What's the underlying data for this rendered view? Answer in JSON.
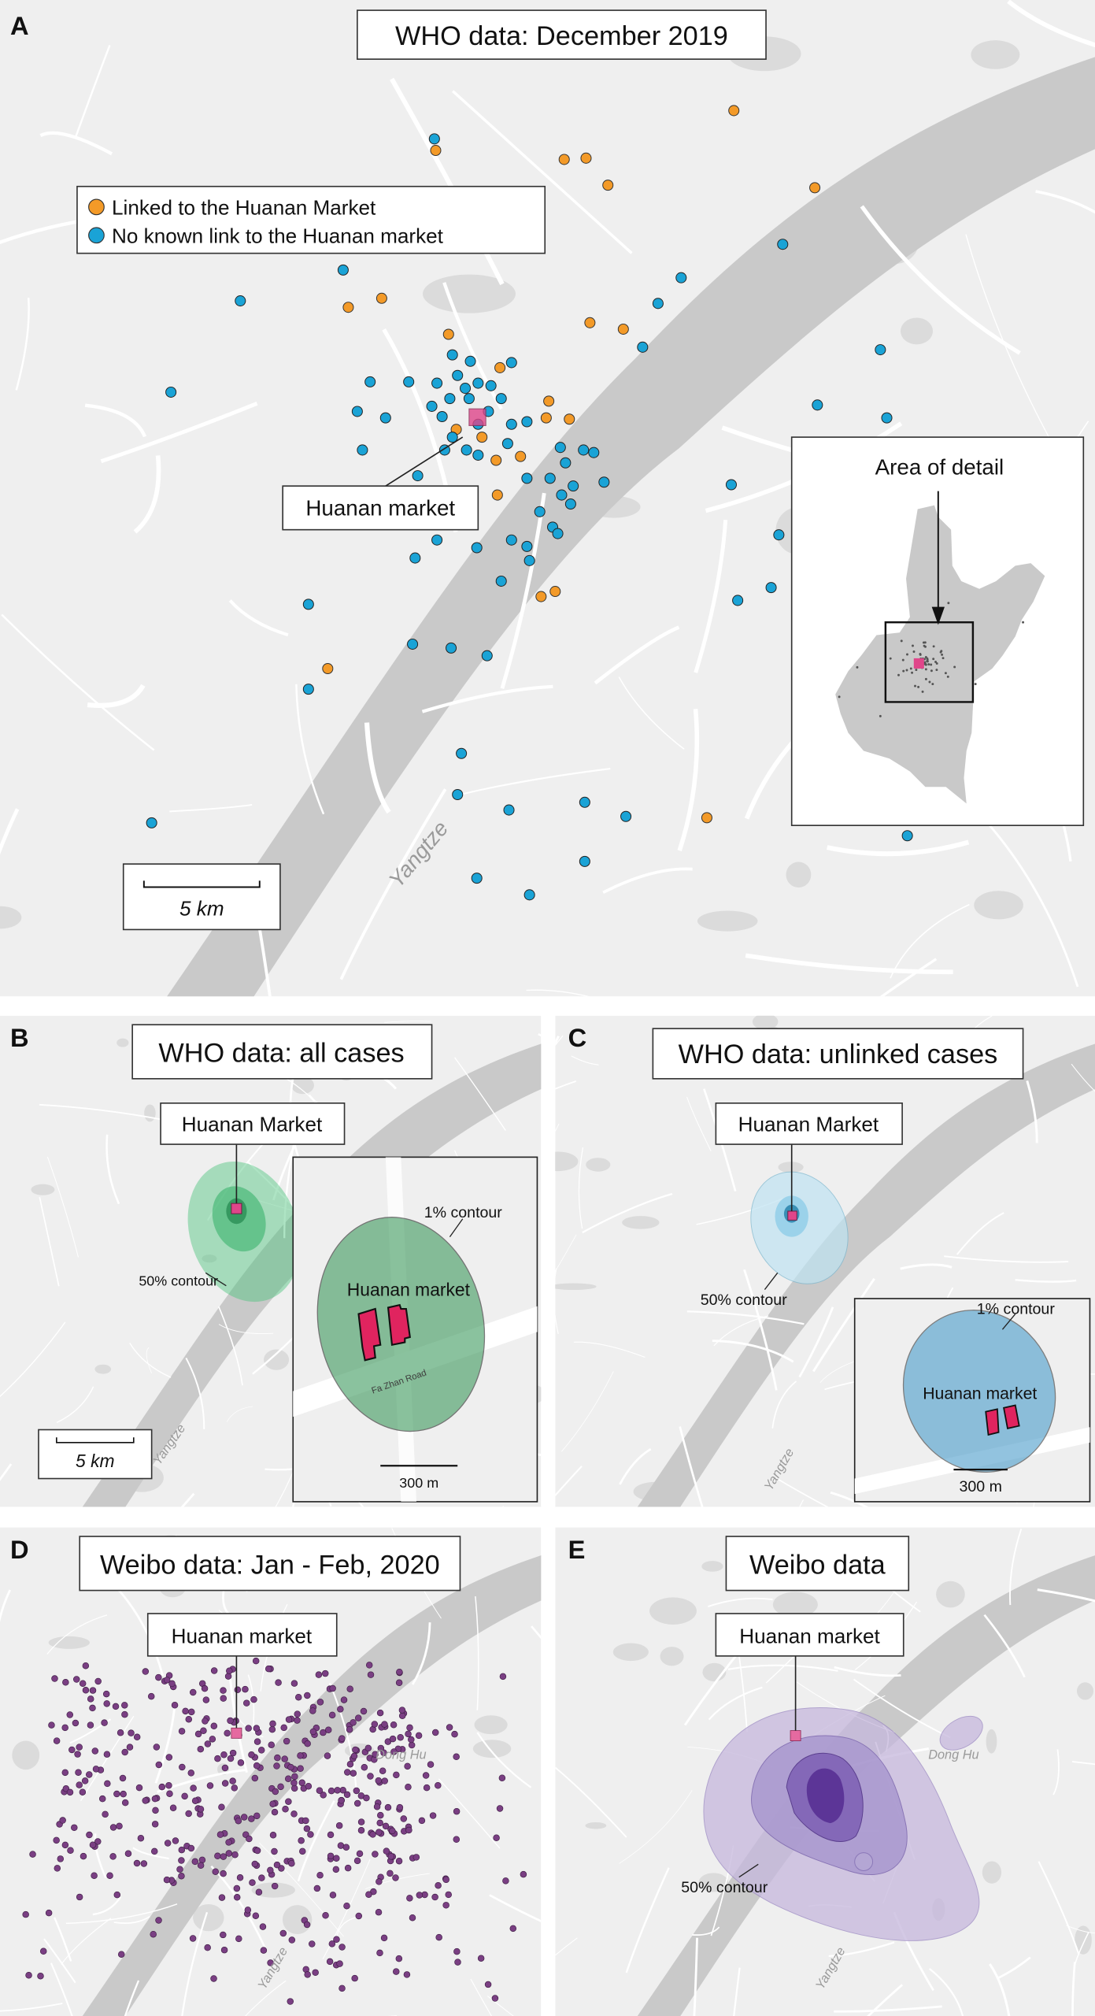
{
  "colors": {
    "linked": "#f39a28",
    "unlinked": "#1aa3d6",
    "market": "#e0468a",
    "all_cases_contour": "#4cc47d",
    "unlinked_contour": "#8fcde8",
    "weibo": "#7a3f83",
    "weibo_contour": "#8e6bb3",
    "map_background": "#efefef",
    "roads": "#ffffff",
    "water": "#c9c9c9"
  },
  "panel_a": {
    "letter": "A",
    "title": "WHO data: December 2019",
    "legend": [
      {
        "label": "Linked to the Huanan Market",
        "color": "#f39a28"
      },
      {
        "label": "No known link to the Huanan market",
        "color": "#1aa3d6"
      }
    ],
    "market_label": "Huanan market",
    "inset_label": "Area of detail",
    "scale_label": "5 km",
    "river_label": "Yangtze"
  },
  "panel_b": {
    "letter": "B",
    "title": "WHO data: all cases",
    "market_label": "Huanan Market",
    "contour_label": "50% contour",
    "inset_contour_label": "1% contour",
    "inset_market_label": "Huanan market",
    "inset_scale_label": "300 m",
    "inset_road_label": "Fa Zhan Road",
    "scale_label": "5 km",
    "river_label": "Yangtze"
  },
  "panel_c": {
    "letter": "C",
    "title": "WHO data: unlinked cases",
    "market_label": "Huanan Market",
    "contour_label": "50% contour",
    "inset_contour_label": "1% contour",
    "inset_market_label": "Huanan market",
    "inset_scale_label": "300 m",
    "river_label": "Yangtze"
  },
  "panel_d": {
    "letter": "D",
    "title": "Weibo data: Jan - Feb, 2020",
    "market_label": "Huanan market",
    "lake_label": "Dong Hu",
    "river_label": "Yangtze"
  },
  "panel_e": {
    "letter": "E",
    "title": "Weibo data",
    "market_label": "Huanan market",
    "contour_label": "50% contour",
    "lake_label": "Dong Hu",
    "river_label": "Yangtze"
  }
}
